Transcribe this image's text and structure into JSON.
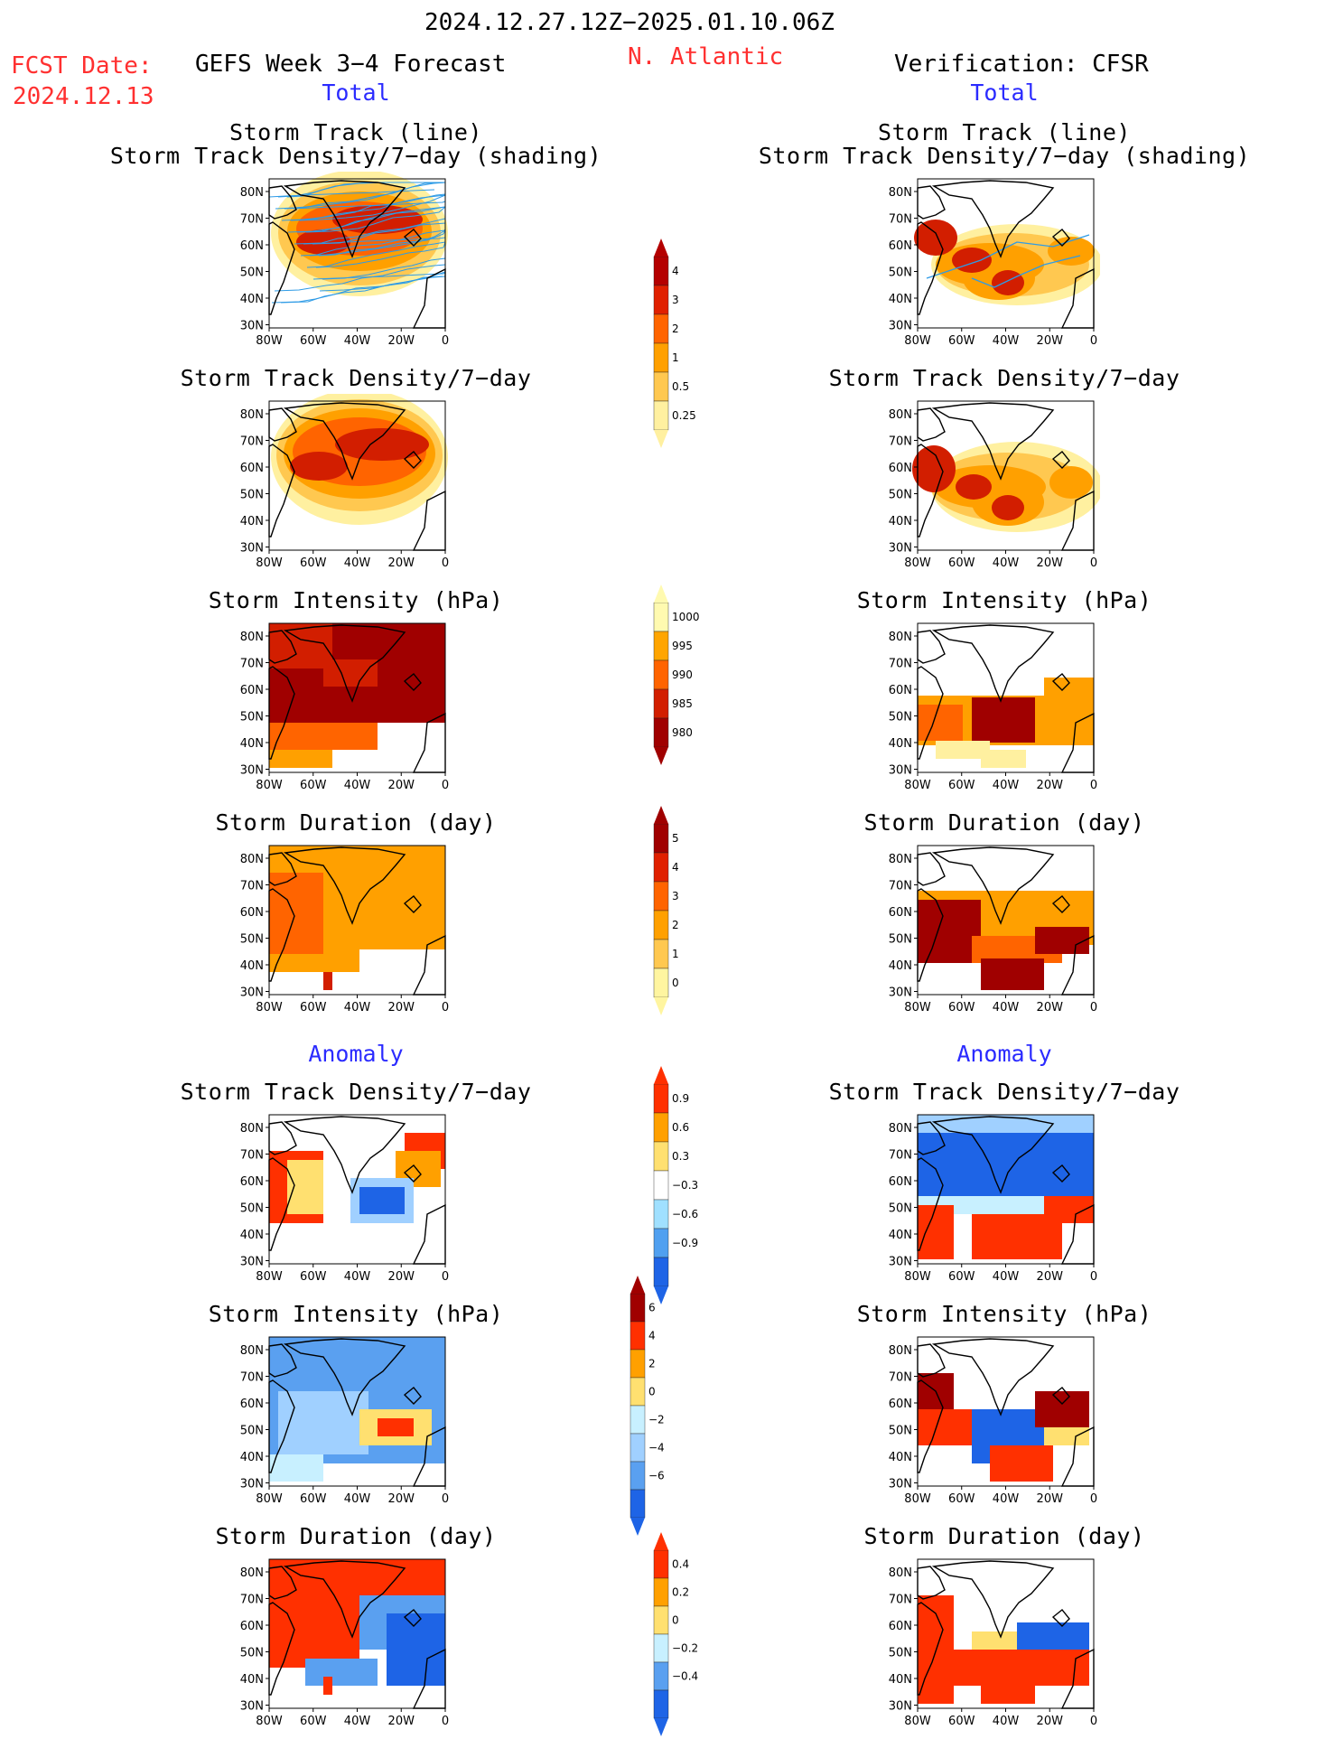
{
  "header": {
    "date_range": "2024.12.27.12Z−2025.01.10.06Z",
    "fcst_label": "FCST Date:",
    "fcst_date": "2024.12.13",
    "forecast_label": "GEFS Week 3−4 Forecast",
    "region": "N. Atlantic",
    "verification_label": "Verification: CFSR"
  },
  "sections": {
    "total": "Total",
    "anomaly": "Anomaly"
  },
  "axes": {
    "lat_ticks": [
      "80N",
      "70N",
      "60N",
      "50N",
      "40N",
      "30N"
    ],
    "lon_ticks": [
      "80W",
      "60W",
      "40W",
      "20W",
      "0"
    ]
  },
  "panels": {
    "track_line": "Storm Track (line)",
    "track_shading": "Storm Track Density/7−day (shading)",
    "density": "Storm Track Density/7−day",
    "intensity": "Storm Intensity (hPa)",
    "duration": "Storm Duration (day)"
  },
  "colorbars": {
    "density_total": {
      "labels": [
        "4",
        "3",
        "2",
        "1",
        "0.5",
        "0.25"
      ],
      "colors": [
        "#b40000",
        "#e02000",
        "#ff6400",
        "#ffa000",
        "#ffc850",
        "#fff0a0"
      ]
    },
    "intensity_total": {
      "labels": [
        "1000",
        "995",
        "990",
        "985",
        "980"
      ],
      "colors": [
        "#fffab0",
        "#ffa500",
        "#ff6400",
        "#d21e00",
        "#a00000"
      ]
    },
    "duration_total": {
      "labels": [
        "5",
        "4",
        "3",
        "2",
        "1",
        "0"
      ],
      "colors": [
        "#a00000",
        "#e02000",
        "#ff6400",
        "#ffa000",
        "#ffc850",
        "#fff5a0"
      ]
    },
    "density_anom": {
      "labels": [
        "0.9",
        "0.6",
        "0.3",
        "−0.3",
        "−0.6",
        "−0.9"
      ],
      "colors": [
        "#ff3000",
        "#ffa000",
        "#ffe070",
        "#ffffff",
        "#a0e0ff",
        "#50a0f0",
        "#1e64e6"
      ]
    },
    "intensity_anom": {
      "labels": [
        "6",
        "4",
        "2",
        "0",
        "−2",
        "−4",
        "−6"
      ],
      "colors": [
        "#a00000",
        "#ff3000",
        "#ffa000",
        "#ffe070",
        "#c8f0ff",
        "#a0d0ff",
        "#5aa0f0",
        "#1e64e6"
      ]
    },
    "duration_anom": {
      "labels": [
        "0.4",
        "0.2",
        "0",
        "−0.2",
        "−0.4"
      ],
      "colors": [
        "#ff3000",
        "#ffa000",
        "#ffe070",
        "#c8f0ff",
        "#5aa0f0",
        "#1e64e6"
      ]
    }
  }
}
